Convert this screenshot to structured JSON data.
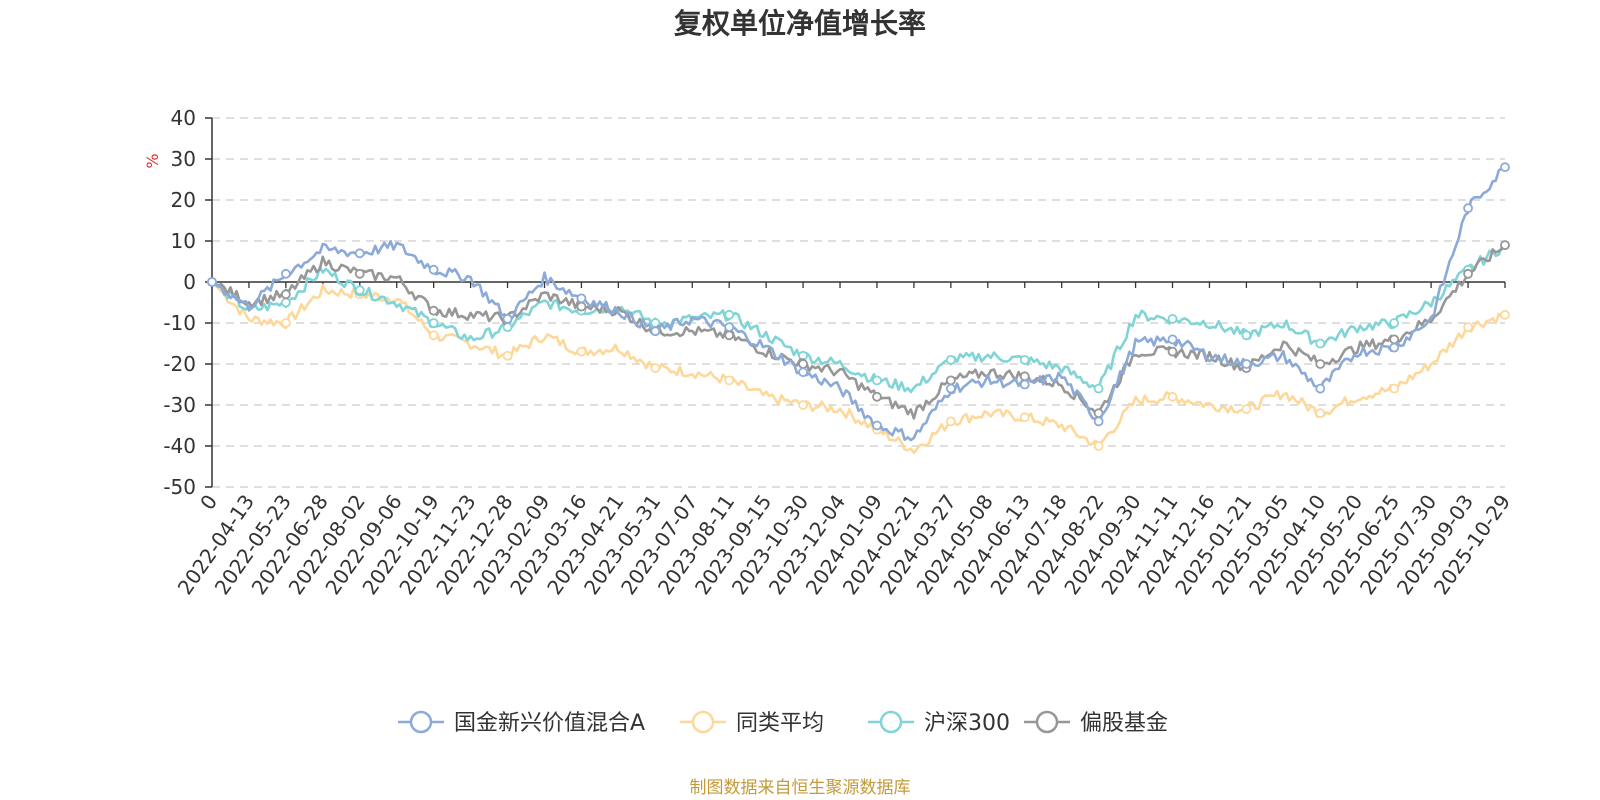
{
  "chart_data": {
    "type": "line",
    "title": "复权单位净值增长率",
    "ylabel": "%",
    "ylim": [
      -50,
      40
    ],
    "yticks": [
      "40",
      "30",
      "20",
      "10",
      "0",
      "-10",
      "-20",
      "-30",
      "-40",
      "-50"
    ],
    "grid": true,
    "legend_position": "bottom-center",
    "categories": [
      "0",
      "2022-04-13",
      "2022-05-23",
      "2022-06-28",
      "2022-08-02",
      "2022-09-06",
      "2022-10-19",
      "2022-11-23",
      "2022-12-28",
      "2023-02-09",
      "2023-03-16",
      "2023-04-21",
      "2023-05-31",
      "2023-07-07",
      "2023-08-11",
      "2023-09-15",
      "2023-10-30",
      "2023-12-04",
      "2024-01-09",
      "2024-02-21",
      "2024-03-27",
      "2024-05-08",
      "2024-06-13",
      "2024-07-18",
      "2024-08-22",
      "2024-09-30",
      "2024-11-11",
      "2024-12-16",
      "2025-01-21",
      "2025-03-05",
      "2025-04-10",
      "2025-05-20",
      "2025-06-25",
      "2025-07-30",
      "2025-09-03",
      "2025-10-29"
    ],
    "series": [
      {
        "name": "国金新兴价值混合A",
        "color": "#8caad8",
        "values": [
          0,
          -6,
          2,
          8,
          7,
          9,
          3,
          1,
          -9,
          1,
          -4,
          -7,
          -12,
          -9,
          -11,
          -16,
          -22,
          -26,
          -35,
          -38,
          -26,
          -24,
          -25,
          -23,
          -34,
          -15,
          -14,
          -18,
          -20,
          -18,
          -26,
          -17,
          -16,
          -9,
          18,
          28
        ]
      },
      {
        "name": "同类平均",
        "color": "#fdd89a",
        "values": [
          0,
          -9,
          -10,
          -2,
          -3,
          -4,
          -13,
          -15,
          -18,
          -13,
          -17,
          -16,
          -21,
          -22,
          -24,
          -28,
          -30,
          -31,
          -36,
          -41,
          -34,
          -32,
          -33,
          -35,
          -40,
          -29,
          -28,
          -30,
          -31,
          -27,
          -32,
          -28,
          -26,
          -20,
          -11,
          -8
        ]
      },
      {
        "name": "沪深300",
        "color": "#80d4d6",
        "values": [
          0,
          -7,
          -5,
          3,
          -2,
          -5,
          -10,
          -14,
          -11,
          -5,
          -7,
          -6,
          -10,
          -9,
          -8,
          -13,
          -18,
          -20,
          -24,
          -26,
          -19,
          -18,
          -19,
          -21,
          -26,
          -8,
          -9,
          -10,
          -13,
          -10,
          -15,
          -11,
          -10,
          -5,
          3,
          9
        ]
      },
      {
        "name": "偏股基金",
        "color": "#979797",
        "values": [
          0,
          -5,
          -3,
          5,
          2,
          1,
          -7,
          -8,
          -9,
          -3,
          -6,
          -7,
          -12,
          -12,
          -13,
          -17,
          -20,
          -22,
          -28,
          -32,
          -24,
          -22,
          -23,
          -25,
          -32,
          -17,
          -17,
          -18,
          -21,
          -15,
          -20,
          -16,
          -14,
          -9,
          2,
          9
        ]
      }
    ]
  },
  "legend": {
    "items": [
      "国金新兴价值混合A",
      "同类平均",
      "沪深300",
      "偏股基金"
    ]
  },
  "source_text": "制图数据来自恒生聚源数据库",
  "colors": {
    "source": "#c49a3a",
    "unit": "#e03030",
    "grid": "#cccccc",
    "axis": "#333333"
  }
}
